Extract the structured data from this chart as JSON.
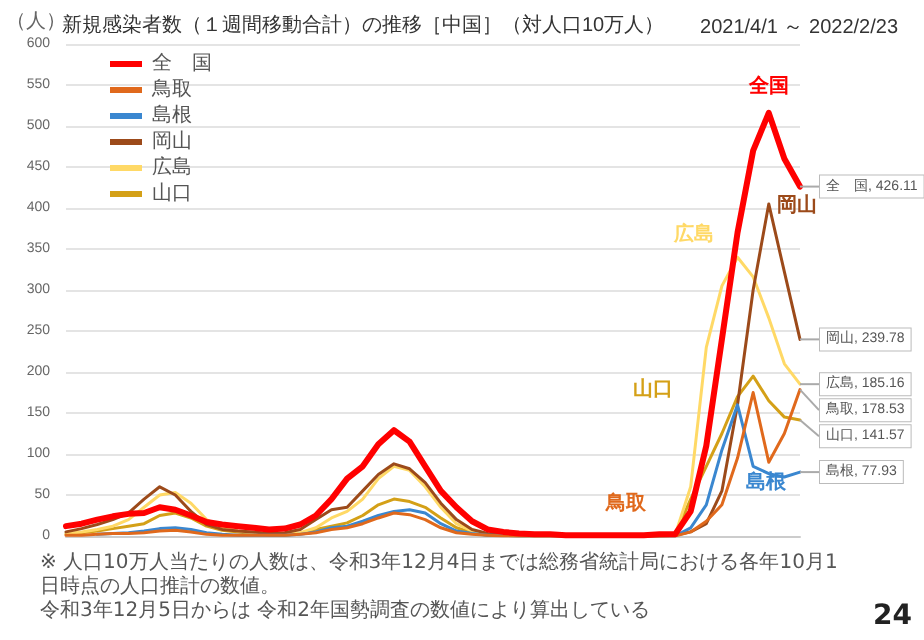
{
  "chart_data": {
    "type": "line",
    "title": "新規感染者数（１週間移動合計）の推移［中国］（対人口10万人）",
    "subtitle": "2021/4/1 ～ 2022/2/23",
    "ylabel": "（人）",
    "categories": [
      null,
      null,
      null,
      null,
      null,
      null,
      null,
      null,
      null,
      null,
      null,
      null,
      null,
      null,
      null,
      null,
      null,
      null,
      null,
      null,
      null,
      null,
      null,
      null,
      null,
      null,
      null,
      null,
      null,
      null,
      null,
      null,
      null,
      null,
      null,
      null,
      null,
      null,
      null,
      null,
      null,
      null,
      null,
      null,
      null,
      null,
      null,
      null
    ],
    "series": [
      {
        "name": "全　国",
        "color": "#ff0000",
        "values": [
          12,
          15,
          20,
          24,
          27,
          28,
          35,
          32,
          25,
          17,
          14,
          12,
          10,
          8,
          9,
          14,
          25,
          45,
          70,
          85,
          112,
          129,
          115,
          85,
          55,
          35,
          18,
          8,
          5,
          3,
          2,
          2,
          1,
          1,
          1,
          1,
          1,
          1,
          2,
          2,
          30,
          110,
          240,
          370,
          470,
          516,
          460,
          426.11
        ],
        "value_labels": [
          null,
          null,
          null,
          null,
          null,
          null,
          null,
          null,
          null,
          null,
          null,
          null,
          null,
          null,
          null,
          null,
          null,
          null,
          null,
          null,
          null,
          null,
          null,
          null,
          null,
          null,
          null,
          null,
          null,
          null,
          null,
          null,
          null,
          null,
          null,
          null,
          null,
          null,
          null,
          null,
          null,
          null,
          null,
          null,
          null,
          null,
          null,
          "全　国, 426.11"
        ]
      },
      {
        "name": "鳥取",
        "color": "#e0691c",
        "values": [
          1,
          1,
          2,
          3,
          3,
          4,
          6,
          7,
          5,
          2,
          1,
          1,
          1,
          1,
          1,
          2,
          4,
          8,
          10,
          15,
          22,
          28,
          26,
          20,
          10,
          4,
          2,
          1,
          0,
          0,
          0,
          0,
          0,
          0,
          0,
          0,
          0,
          0,
          0,
          0,
          5,
          18,
          38,
          95,
          175,
          90,
          125,
          178.53
        ],
        "value_labels": [
          null,
          null,
          null,
          null,
          null,
          null,
          null,
          null,
          null,
          null,
          null,
          null,
          null,
          null,
          null,
          null,
          null,
          null,
          null,
          null,
          null,
          null,
          null,
          null,
          null,
          null,
          null,
          null,
          null,
          null,
          null,
          null,
          null,
          null,
          null,
          null,
          null,
          null,
          null,
          null,
          null,
          null,
          null,
          null,
          null,
          null,
          null,
          "鳥取, 178.53"
        ]
      },
      {
        "name": "島根",
        "color": "#3a87d0",
        "values": [
          null,
          null,
          2,
          3,
          4,
          6,
          9,
          10,
          8,
          4,
          2,
          1,
          1,
          1,
          1,
          2,
          5,
          10,
          12,
          18,
          25,
          30,
          32,
          28,
          15,
          6,
          3,
          1,
          1,
          0,
          0,
          0,
          0,
          0,
          0,
          0,
          0,
          0,
          0,
          0,
          10,
          38,
          105,
          160,
          85,
          76,
          72,
          77.93
        ],
        "value_labels": [
          null,
          null,
          null,
          null,
          null,
          null,
          null,
          null,
          null,
          null,
          null,
          null,
          null,
          null,
          null,
          null,
          null,
          null,
          null,
          null,
          null,
          null,
          null,
          null,
          null,
          null,
          null,
          null,
          null,
          null,
          null,
          null,
          null,
          null,
          null,
          null,
          null,
          null,
          null,
          null,
          null,
          null,
          null,
          null,
          null,
          null,
          null,
          "島根, 77.93"
        ]
      },
      {
        "name": "岡山",
        "color": "#9c4a1a",
        "values": [
          5,
          9,
          14,
          20,
          28,
          45,
          60,
          50,
          30,
          14,
          8,
          6,
          5,
          3,
          4,
          8,
          20,
          32,
          35,
          55,
          75,
          88,
          82,
          65,
          40,
          20,
          8,
          3,
          2,
          1,
          1,
          1,
          0,
          0,
          0,
          0,
          0,
          0,
          0,
          1,
          5,
          15,
          55,
          160,
          300,
          405,
          322,
          239.78
        ],
        "value_labels": [
          null,
          null,
          null,
          null,
          null,
          null,
          null,
          null,
          null,
          null,
          null,
          null,
          null,
          null,
          null,
          null,
          null,
          null,
          null,
          null,
          null,
          null,
          null,
          null,
          null,
          null,
          null,
          null,
          null,
          null,
          null,
          null,
          null,
          null,
          null,
          null,
          null,
          null,
          null,
          null,
          null,
          null,
          null,
          null,
          null,
          null,
          null,
          "岡山, 239.78"
        ]
      },
      {
        "name": "広島",
        "color": "#ffd966",
        "values": [
          3,
          5,
          8,
          12,
          20,
          35,
          50,
          53,
          40,
          20,
          10,
          6,
          4,
          2,
          2,
          4,
          10,
          22,
          30,
          45,
          70,
          85,
          80,
          60,
          35,
          15,
          6,
          2,
          1,
          1,
          0,
          0,
          0,
          0,
          0,
          0,
          0,
          0,
          0,
          1,
          60,
          230,
          305,
          340,
          316,
          266,
          210,
          185.16
        ],
        "value_labels": [
          null,
          null,
          null,
          null,
          null,
          null,
          null,
          null,
          null,
          null,
          null,
          null,
          null,
          null,
          null,
          null,
          null,
          null,
          null,
          null,
          null,
          null,
          null,
          null,
          null,
          null,
          null,
          null,
          null,
          null,
          null,
          null,
          null,
          null,
          null,
          null,
          null,
          null,
          null,
          null,
          null,
          null,
          null,
          null,
          null,
          null,
          null,
          "広島, 185.16"
        ]
      },
      {
        "name": "山口",
        "color": "#d4a017",
        "values": [
          2,
          4,
          6,
          9,
          12,
          15,
          25,
          28,
          22,
          12,
          7,
          5,
          3,
          1,
          1,
          3,
          8,
          12,
          16,
          25,
          38,
          45,
          42,
          35,
          22,
          10,
          4,
          1,
          1,
          0,
          0,
          0,
          0,
          0,
          0,
          0,
          0,
          0,
          0,
          1,
          45,
          85,
          125,
          170,
          195,
          165,
          145,
          141.57
        ],
        "value_labels": [
          null,
          null,
          null,
          null,
          null,
          null,
          null,
          null,
          null,
          null,
          null,
          null,
          null,
          null,
          null,
          null,
          null,
          null,
          null,
          null,
          null,
          null,
          null,
          null,
          null,
          null,
          null,
          null,
          null,
          null,
          null,
          null,
          null,
          null,
          null,
          null,
          null,
          null,
          null,
          null,
          null,
          null,
          null,
          null,
          null,
          null,
          null,
          "山口, 141.57"
        ]
      }
    ],
    "annotations": [
      "全国",
      "鳥取",
      "島根",
      "岡山",
      "広島",
      "山口",
      "※ 人口10万人当たりの人数は、令和3年12月4日までは総務省統計局における各年10月1日時点の人口推計の数値。",
      "令和3年12月5日からは 令和2年国勢調査の数値により算出している",
      "24"
    ],
    "ylim": [
      0,
      600
    ],
    "yticks": [
      0,
      50,
      100,
      150,
      200,
      250,
      300,
      350,
      400,
      450,
      500,
      550,
      600
    ],
    "grid": "y",
    "legend": "top left",
    "tick_labels": "y",
    "marker": "none",
    "line_style": "solid"
  }
}
